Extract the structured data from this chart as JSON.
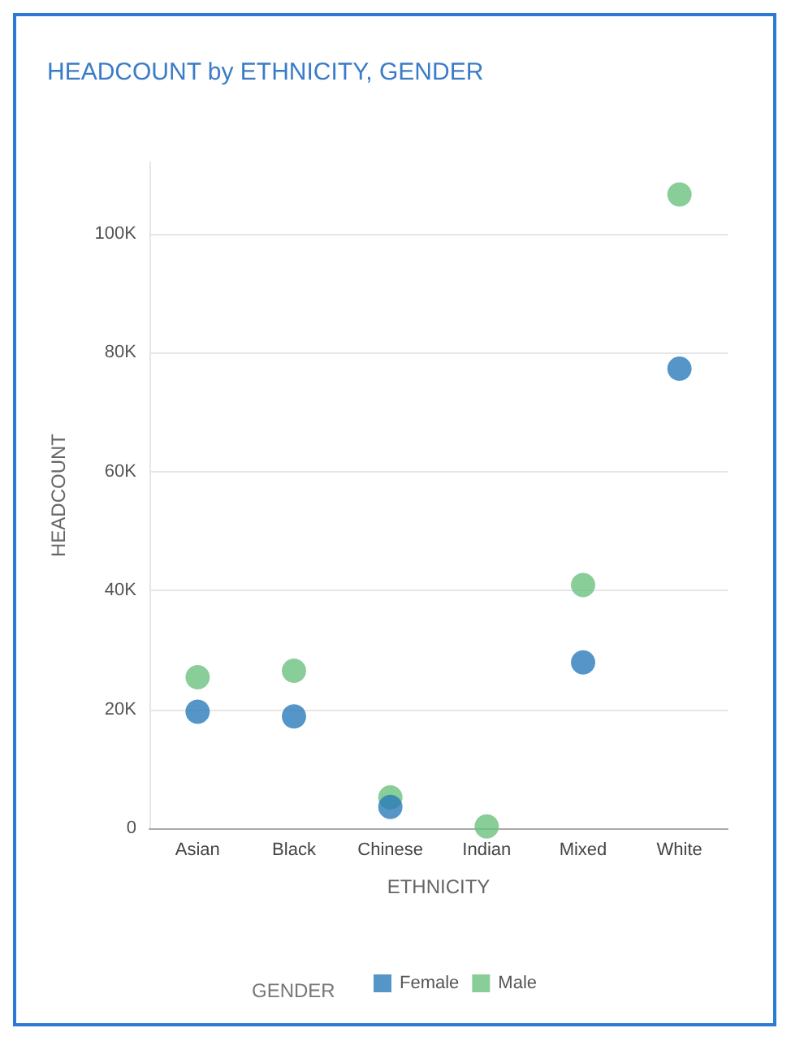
{
  "chart_data": {
    "type": "scatter",
    "title": "HEADCOUNT by ETHNICITY, GENDER",
    "xlabel": "ETHNICITY",
    "ylabel": "HEADCOUNT",
    "legend_title": "GENDER",
    "categories": [
      "Asian",
      "Black",
      "Chinese",
      "Indian",
      "Mixed",
      "White"
    ],
    "series": [
      {
        "name": "Female",
        "color": "#2b7bb9",
        "values": [
          19600,
          18800,
          3600,
          null,
          27900,
          77300
        ]
      },
      {
        "name": "Male",
        "color": "#6cc17e",
        "values": [
          25400,
          26500,
          5200,
          300,
          40900,
          106600
        ]
      }
    ],
    "ylim": [
      0,
      112000
    ],
    "yticks": [
      {
        "value": 0,
        "label": "0"
      },
      {
        "value": 20000,
        "label": "20K"
      },
      {
        "value": 40000,
        "label": "40K"
      },
      {
        "value": 60000,
        "label": "60K"
      },
      {
        "value": 80000,
        "label": "80K"
      },
      {
        "value": 100000,
        "label": "100K"
      }
    ],
    "grid": "y",
    "legend": "bottom",
    "marker": "circle"
  }
}
